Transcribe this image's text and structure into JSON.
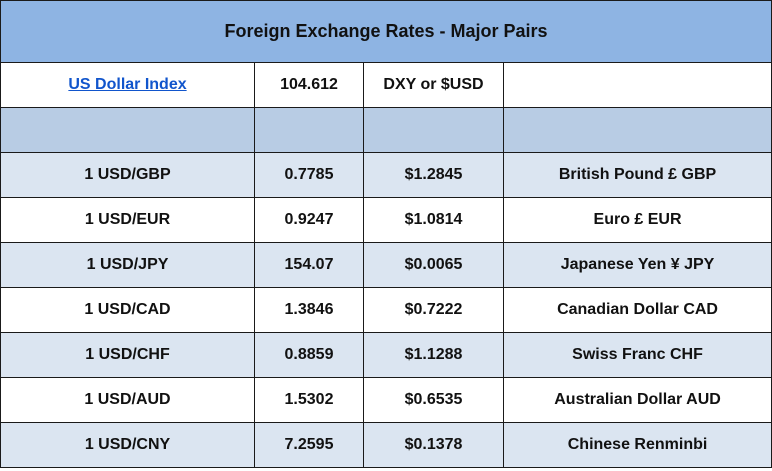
{
  "title": "Foreign Exchange Rates - Major Pairs",
  "index_row": {
    "name": "US Dollar Index",
    "value": "104.612",
    "symbol": "DXY or $USD",
    "note": ""
  },
  "pairs": [
    {
      "pair": "1 USD/GBP",
      "rate": "0.7785",
      "inverse": "$1.2845",
      "currency": "British Pound £ GBP"
    },
    {
      "pair": "1 USD/EUR",
      "rate": "0.9247",
      "inverse": "$1.0814",
      "currency": "Euro £ EUR"
    },
    {
      "pair": "1 USD/JPY",
      "rate": "154.07",
      "inverse": "$0.0065",
      "currency": "Japanese Yen ¥ JPY"
    },
    {
      "pair": "1 USD/CAD",
      "rate": "1.3846",
      "inverse": "$0.7222",
      "currency": "Canadian Dollar CAD"
    },
    {
      "pair": "1 USD/CHF",
      "rate": "0.8859",
      "inverse": "$1.1288",
      "currency": "Swiss Franc CHF"
    },
    {
      "pair": "1 USD/AUD",
      "rate": "1.5302",
      "inverse": "$0.6535",
      "currency": "Australian Dollar AUD"
    },
    {
      "pair": "1 USD/CNY",
      "rate": "7.2595",
      "inverse": "$0.1378",
      "currency": "Chinese Renminbi"
    }
  ]
}
